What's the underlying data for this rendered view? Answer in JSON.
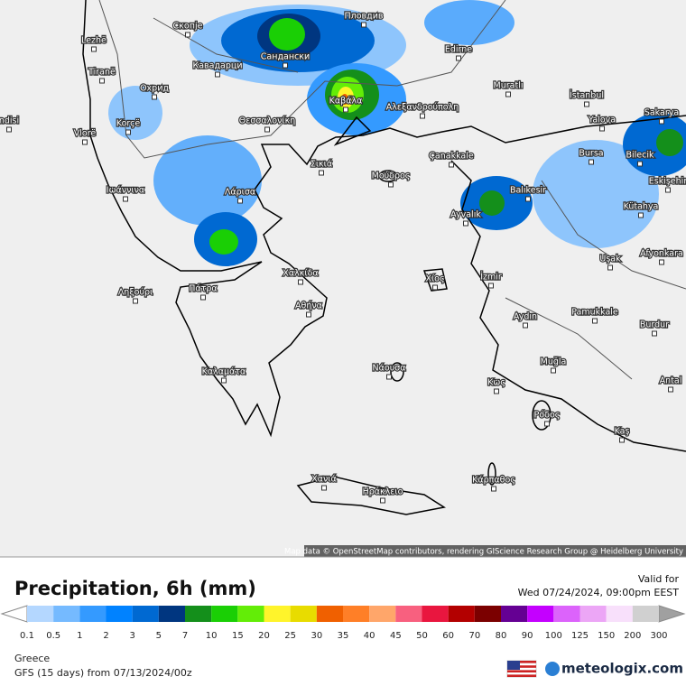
{
  "map": {
    "labels": [
      "Lezhë",
      "Скопје",
      "Пловдив",
      "Сандански",
      "Edirne",
      "Tiranë",
      "Кавадарци",
      "Охрид",
      "Muratlı",
      "İstanbul",
      "Καβάλα",
      "Αλεξανδρούπολη",
      "Sakarya",
      "ndisi",
      "Korçë",
      "Θεσσαλονίκη",
      "Yalova",
      "Vlorë",
      "Bursa",
      "Bilecik",
      "Çanakkale",
      "Σικιά",
      "Μούδρος",
      "Eskişehir",
      "Ιωάννινα",
      "Λάρισα",
      "Balıkesir",
      "Ayvalık",
      "Kütahya",
      "Uşak",
      "Afyonkara",
      "Χαλκίδα",
      "Χίος",
      "İzmir",
      "Ληξούρι",
      "Πάτρα",
      "Αθήνα",
      "Pamukkale",
      "Aydın",
      "Burdur",
      "Καλαμάτα",
      "Νάουσα",
      "Muğla",
      "Antal",
      "Κως",
      "Ρόδος",
      "Kaş",
      "Χανιά",
      "Ηράκλειο",
      "Κάρπαθος"
    ],
    "attribution": "Map data © OpenStreetMap contributors, rendering GIScience Research Group @ Heidelberg University"
  },
  "legend": {
    "title": "Precipitation, 6h (mm)",
    "valid_label": "Valid for",
    "valid_time": "Wed 07/24/2024, 09:00pm EEST",
    "ticks": [
      0.1,
      0.5,
      1,
      2,
      3,
      5,
      7,
      10,
      15,
      20,
      25,
      30,
      35,
      40,
      45,
      50,
      60,
      70,
      80,
      90,
      100,
      125,
      150,
      200,
      300
    ],
    "colors": [
      "#b4d7ff",
      "#75baff",
      "#349aff",
      "#0082ff",
      "#0069d2",
      "#003680",
      "#148f1b",
      "#1acf05",
      "#63ed07",
      "#fff42b",
      "#e8dc00",
      "#f06000",
      "#ff7f27",
      "#ffa66a",
      "#f8607f",
      "#e9163f",
      "#b30000",
      "#7b0000",
      "#650093",
      "#c400ff",
      "#dc63fb",
      "#eca6f6",
      "#f8e0fb",
      "#d0d0d0"
    ]
  },
  "footer": {
    "region": "Greece",
    "model": "GFS (15 days) from 07/13/2024/00z",
    "brand": "meteologix.com"
  }
}
